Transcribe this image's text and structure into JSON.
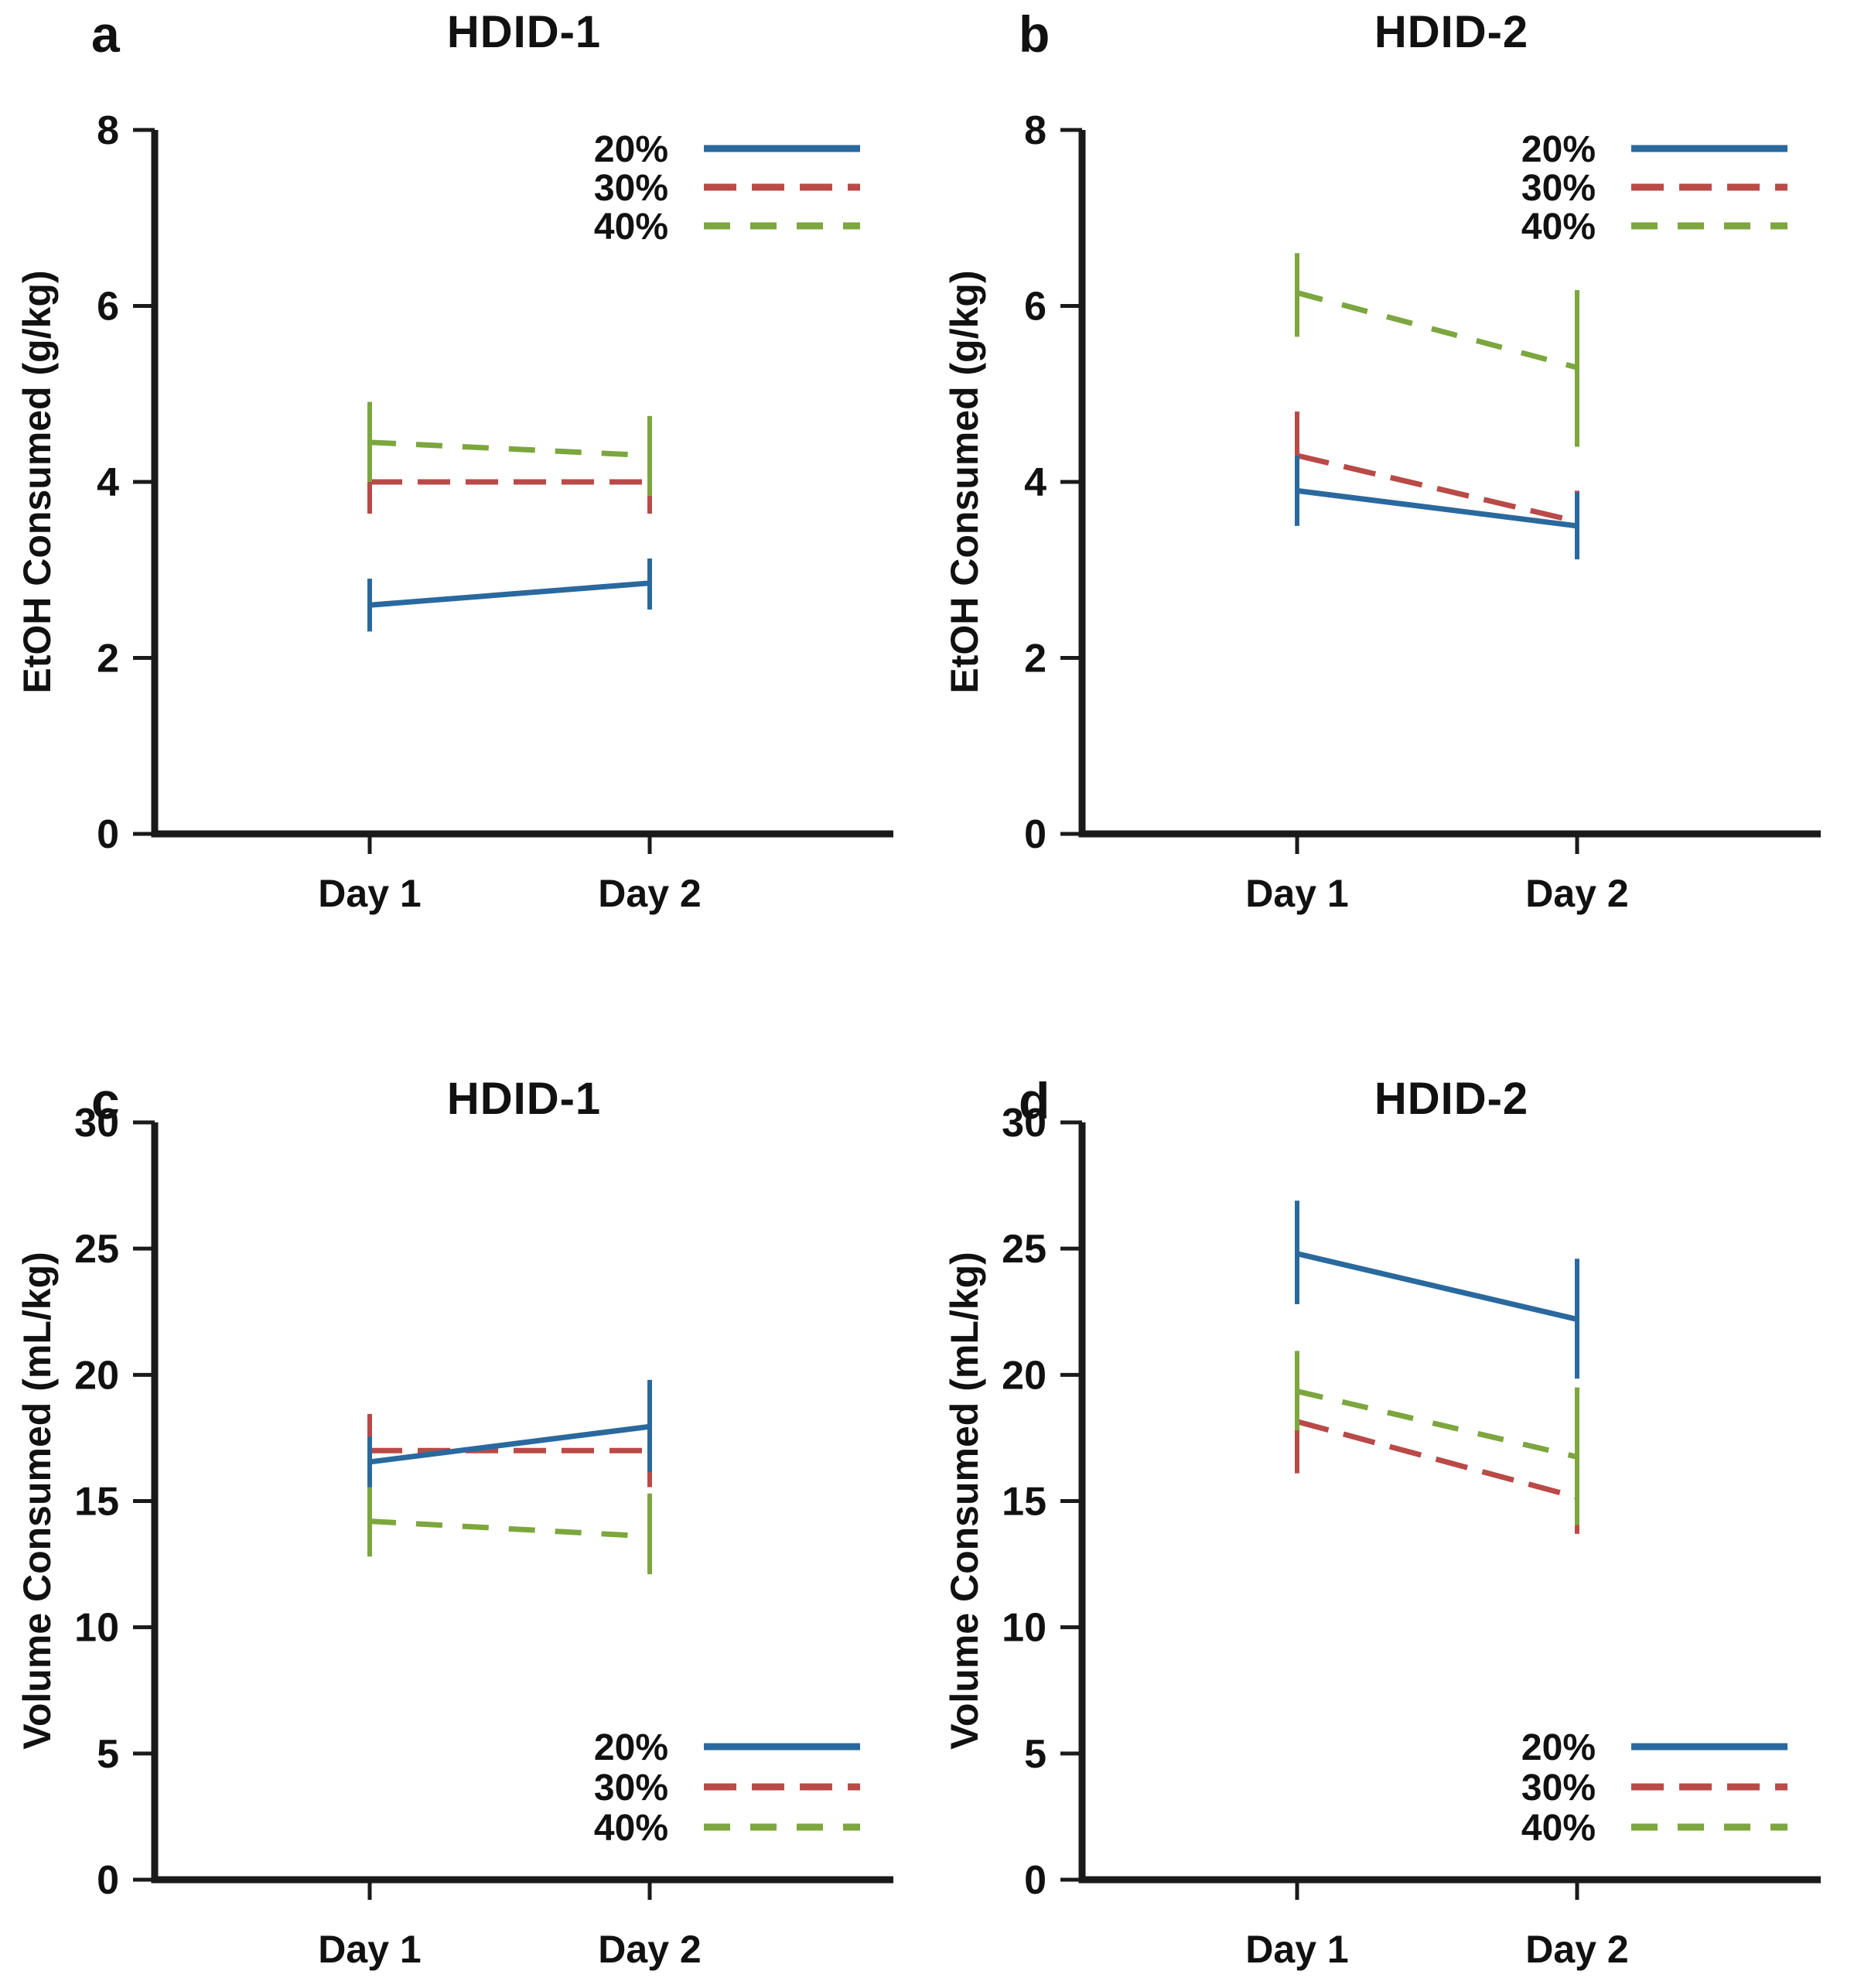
{
  "figure": {
    "background": "#ffffff",
    "axis_color": "#1a1a1a",
    "series_colors": {
      "20%": "#2A699E",
      "30%": "#B94A47",
      "40%": "#7CA63E"
    }
  },
  "chart_data": [
    {
      "panel_letter": "a",
      "title": "HDID-1",
      "type": "line",
      "ylabel": "EtOH Consumed (g/kg)",
      "xlabel": "",
      "ylim": [
        0,
        8
      ],
      "yticks": [
        8,
        6,
        4,
        2,
        0
      ],
      "categories": [
        "Day 1",
        "Day 2"
      ],
      "legend_position": "top-right",
      "grid": false,
      "series": [
        {
          "name": "20%",
          "color": "#2A699E",
          "style": "solid",
          "values": [
            2.6,
            2.85
          ],
          "err_lo": [
            0.3,
            0.3
          ],
          "err_hi": [
            0.3,
            0.28
          ]
        },
        {
          "name": "30%",
          "color": "#B94A47",
          "style": "long-dash",
          "values": [
            4.0,
            4.0
          ],
          "err_lo": [
            0.36,
            0.36
          ],
          "err_hi": [
            0.36,
            0.36
          ]
        },
        {
          "name": "40%",
          "color": "#7CA63E",
          "style": "dash",
          "values": [
            4.45,
            4.3
          ],
          "err_lo": [
            0.45,
            0.46
          ],
          "err_hi": [
            0.46,
            0.45
          ]
        }
      ]
    },
    {
      "panel_letter": "b",
      "title": "HDID-2",
      "type": "line",
      "ylabel": "EtOH Consumed (g/kg)",
      "xlabel": "",
      "ylim": [
        0,
        8
      ],
      "yticks": [
        8,
        6,
        4,
        2,
        0
      ],
      "categories": [
        "Day 1",
        "Day 2"
      ],
      "legend_position": "top-right",
      "grid": false,
      "series": [
        {
          "name": "20%",
          "color": "#2A699E",
          "style": "solid",
          "values": [
            3.9,
            3.5
          ],
          "err_lo": [
            0.4,
            0.38
          ],
          "err_hi": [
            0.4,
            0.38
          ]
        },
        {
          "name": "30%",
          "color": "#B94A47",
          "style": "long-dash",
          "values": [
            4.3,
            3.55
          ],
          "err_lo": [
            0.46,
            0.35
          ],
          "err_hi": [
            0.5,
            0.35
          ]
        },
        {
          "name": "40%",
          "color": "#7CA63E",
          "style": "dash",
          "values": [
            6.15,
            5.3
          ],
          "err_lo": [
            0.5,
            0.9
          ],
          "err_hi": [
            0.45,
            0.88
          ]
        }
      ]
    },
    {
      "panel_letter": "c",
      "title": "HDID-1",
      "type": "line",
      "ylabel": "Volume Consumed (mL/kg)",
      "xlabel": "",
      "ylim": [
        0,
        30
      ],
      "yticks": [
        30,
        25,
        20,
        15,
        10,
        5,
        0
      ],
      "categories": [
        "Day 1",
        "Day 2"
      ],
      "legend_position": "bottom-right",
      "grid": false,
      "series": [
        {
          "name": "20%",
          "color": "#2A699E",
          "style": "solid",
          "values": [
            16.55,
            17.95
          ],
          "err_lo": [
            1.0,
            1.8
          ],
          "err_hi": [
            1.0,
            1.85
          ]
        },
        {
          "name": "30%",
          "color": "#B94A47",
          "style": "long-dash",
          "values": [
            17.0,
            17.0
          ],
          "err_lo": [
            1.5,
            1.45
          ],
          "err_hi": [
            1.45,
            1.4
          ]
        },
        {
          "name": "40%",
          "color": "#7CA63E",
          "style": "dash",
          "values": [
            14.2,
            13.6
          ],
          "err_lo": [
            1.4,
            1.5
          ],
          "err_hi": [
            1.35,
            1.7
          ]
        }
      ]
    },
    {
      "panel_letter": "d",
      "title": "HDID-2",
      "type": "line",
      "ylabel": "Volume Consumed (mL/kg)",
      "xlabel": "",
      "ylim": [
        0,
        30
      ],
      "yticks": [
        30,
        25,
        20,
        15,
        10,
        5,
        0
      ],
      "categories": [
        "Day 1",
        "Day 2"
      ],
      "legend_position": "bottom-right",
      "grid": false,
      "series": [
        {
          "name": "20%",
          "color": "#2A699E",
          "style": "solid",
          "values": [
            24.8,
            22.2
          ],
          "err_lo": [
            2.0,
            2.35
          ],
          "err_hi": [
            2.1,
            2.4
          ]
        },
        {
          "name": "30%",
          "color": "#B94A47",
          "style": "long-dash",
          "values": [
            18.15,
            15.15
          ],
          "err_lo": [
            2.05,
            1.45
          ],
          "err_hi": [
            2.1,
            1.4
          ]
        },
        {
          "name": "40%",
          "color": "#7CA63E",
          "style": "dash",
          "values": [
            19.35,
            16.75
          ],
          "err_lo": [
            1.55,
            2.7
          ],
          "err_hi": [
            1.6,
            2.75
          ]
        }
      ]
    }
  ]
}
